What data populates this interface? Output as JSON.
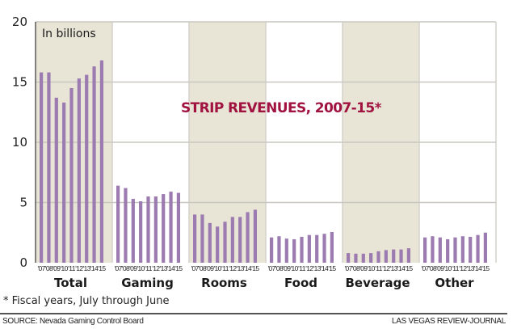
{
  "chart_data": {
    "type": "bar",
    "title": "STRIP REVENUES, 2007-15*",
    "unit_label": "In billions",
    "xlabel": "",
    "ylabel": "",
    "ylim": [
      0,
      20
    ],
    "yticks": [
      0,
      5,
      10,
      15,
      20
    ],
    "grid": true,
    "year_labels": [
      "'07",
      "'08",
      "'09",
      "'10",
      "'11",
      "'12",
      "'13",
      "'14",
      "'15"
    ],
    "categories": [
      "Total",
      "Gaming",
      "Rooms",
      "Food",
      "Beverage",
      "Other"
    ],
    "shaded_categories": [
      "Total",
      "Rooms",
      "Beverage"
    ],
    "series": [
      {
        "name": "Total",
        "values": [
          15.8,
          15.8,
          13.7,
          13.3,
          14.5,
          15.3,
          15.6,
          16.3,
          16.8
        ]
      },
      {
        "name": "Gaming",
        "values": [
          6.4,
          6.2,
          5.3,
          5.1,
          5.5,
          5.5,
          5.7,
          5.9,
          5.8
        ]
      },
      {
        "name": "Rooms",
        "values": [
          4.0,
          4.0,
          3.3,
          3.0,
          3.4,
          3.8,
          3.8,
          4.2,
          4.4
        ]
      },
      {
        "name": "Food",
        "values": [
          2.1,
          2.2,
          2.0,
          1.95,
          2.15,
          2.3,
          2.3,
          2.4,
          2.55
        ]
      },
      {
        "name": "Beverage",
        "values": [
          0.8,
          0.75,
          0.75,
          0.8,
          0.95,
          1.05,
          1.1,
          1.1,
          1.2
        ]
      },
      {
        "name": "Other",
        "values": [
          2.1,
          2.2,
          2.1,
          1.95,
          2.1,
          2.2,
          2.15,
          2.3,
          2.5
        ]
      }
    ],
    "colors": {
      "bar": "#9b7bb0",
      "panel_shade": "#e8e4d6",
      "grid": "#c9c7c1",
      "title": "#a0123f"
    }
  },
  "footnote": "* Fiscal years, July through June",
  "source": "SOURCE: Nevada Gaming Control Board",
  "credit": "LAS VEGAS REVIEW-JOURNAL"
}
